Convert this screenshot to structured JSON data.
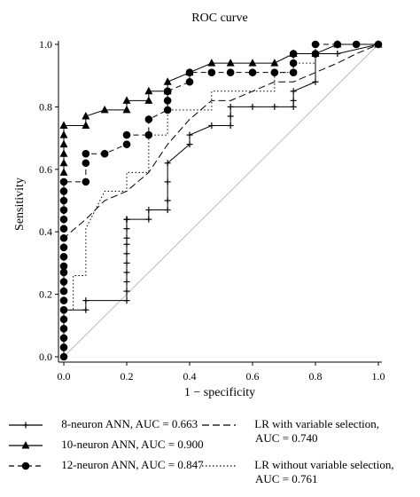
{
  "chart_data": {
    "type": "line",
    "title": "ROC curve",
    "xlabel": "1 − specificity",
    "ylabel": "Sensitivity",
    "xlim": [
      0,
      1
    ],
    "ylim": [
      0,
      1
    ],
    "xticks": [
      "0.0",
      "0.2",
      "0.4",
      "0.6",
      "0.8",
      "1.0"
    ],
    "yticks": [
      "0.0",
      "0.2",
      "0.4",
      "0.6",
      "0.8",
      "1.0"
    ],
    "grid": false,
    "legend_position": "bottom",
    "reference_line": {
      "x": [
        0,
        1
      ],
      "y": [
        0,
        1
      ],
      "color": "#bbbbbb"
    },
    "series": [
      {
        "name": "8-neuron ANN, AUC = 0.663",
        "marker": "plus",
        "dash": "solid",
        "x": [
          0,
          0,
          0,
          0,
          0,
          0,
          0,
          0,
          0.07,
          0.07,
          0.2,
          0.2,
          0.2,
          0.2,
          0.2,
          0.2,
          0.2,
          0.2,
          0.2,
          0.2,
          0.2,
          0.2,
          0.2,
          0.27,
          0.27,
          0.33,
          0.33,
          0.33,
          0.33,
          0.4,
          0.4,
          0.47,
          0.53,
          0.53,
          0.53,
          0.6,
          0.67,
          0.73,
          0.73,
          0.73,
          0.8,
          0.8,
          0.87,
          1.0
        ],
        "y": [
          0,
          0.03,
          0.06,
          0.09,
          0.12,
          0.15,
          0.15,
          0.15,
          0.15,
          0.18,
          0.18,
          0.21,
          0.24,
          0.27,
          0.3,
          0.33,
          0.36,
          0.38,
          0.41,
          0.44,
          0.44,
          0.44,
          0.44,
          0.44,
          0.47,
          0.47,
          0.5,
          0.56,
          0.62,
          0.68,
          0.71,
          0.74,
          0.74,
          0.77,
          0.8,
          0.8,
          0.8,
          0.8,
          0.82,
          0.85,
          0.88,
          0.97,
          0.97,
          1.0
        ]
      },
      {
        "name": "10-neuron ANN, AUC = 0.900",
        "marker": "triangle",
        "dash": "solid",
        "x": [
          0,
          0,
          0,
          0,
          0,
          0,
          0,
          0.07,
          0.07,
          0.13,
          0.2,
          0.2,
          0.27,
          0.27,
          0.33,
          0.33,
          0.4,
          0.47,
          0.53,
          0.6,
          0.67,
          0.73,
          0.8,
          0.87,
          1.0
        ],
        "y": [
          0.59,
          0.62,
          0.65,
          0.68,
          0.71,
          0.74,
          0.74,
          0.74,
          0.77,
          0.79,
          0.79,
          0.82,
          0.82,
          0.85,
          0.85,
          0.88,
          0.91,
          0.94,
          0.94,
          0.94,
          0.94,
          0.97,
          0.97,
          1.0,
          1.0
        ]
      },
      {
        "name": "12-neuron ANN, AUC = 0.847",
        "marker": "circle",
        "dash": "dashed",
        "x": [
          0,
          0,
          0,
          0,
          0,
          0,
          0,
          0,
          0,
          0,
          0,
          0,
          0,
          0,
          0,
          0,
          0,
          0,
          0,
          0,
          0.07,
          0.07,
          0.07,
          0.13,
          0.2,
          0.2,
          0.27,
          0.27,
          0.33,
          0.33,
          0.33,
          0.33,
          0.4,
          0.4,
          0.47,
          0.53,
          0.6,
          0.67,
          0.73,
          0.73,
          0.73,
          0.8,
          0.8,
          0.87,
          0.93,
          1.0
        ],
        "y": [
          0,
          0.03,
          0.06,
          0.09,
          0.12,
          0.15,
          0.18,
          0.21,
          0.24,
          0.27,
          0.29,
          0.32,
          0.35,
          0.38,
          0.41,
          0.44,
          0.47,
          0.5,
          0.53,
          0.56,
          0.56,
          0.62,
          0.65,
          0.65,
          0.68,
          0.71,
          0.71,
          0.76,
          0.79,
          0.82,
          0.85,
          0.85,
          0.88,
          0.91,
          0.91,
          0.91,
          0.91,
          0.91,
          0.91,
          0.94,
          0.97,
          0.97,
          1.0,
          1.0,
          1.0,
          1.0
        ]
      },
      {
        "name": "LR with variable selection,",
        "name_line2": "AUC = 0.740",
        "marker": "none",
        "dash": "longdash",
        "x": [
          0,
          0,
          0.07,
          0.13,
          0.2,
          0.27,
          0.33,
          0.4,
          0.47,
          0.53,
          0.6,
          0.67,
          0.73,
          0.8,
          0.87,
          0.93,
          1.0
        ],
        "y": [
          0,
          0.38,
          0.44,
          0.5,
          0.53,
          0.59,
          0.68,
          0.76,
          0.82,
          0.82,
          0.85,
          0.88,
          0.88,
          0.91,
          0.94,
          0.97,
          1.0
        ]
      },
      {
        "name": "LR without variable selection,",
        "name_line2": "AUC = 0.761",
        "marker": "none",
        "dash": "dotted",
        "x": [
          0,
          0,
          0.03,
          0.03,
          0.07,
          0.07,
          0.13,
          0.2,
          0.2,
          0.27,
          0.27,
          0.33,
          0.33,
          0.4,
          0.47,
          0.47,
          0.53,
          0.6,
          0.67,
          0.67,
          0.73,
          0.73,
          0.8,
          0.8,
          0.87,
          0.87,
          1.0
        ],
        "y": [
          0,
          0.15,
          0.15,
          0.26,
          0.26,
          0.41,
          0.53,
          0.53,
          0.59,
          0.59,
          0.71,
          0.71,
          0.79,
          0.79,
          0.79,
          0.85,
          0.85,
          0.85,
          0.85,
          0.91,
          0.91,
          0.94,
          0.94,
          0.97,
          0.97,
          1.0,
          1.0
        ]
      }
    ]
  }
}
